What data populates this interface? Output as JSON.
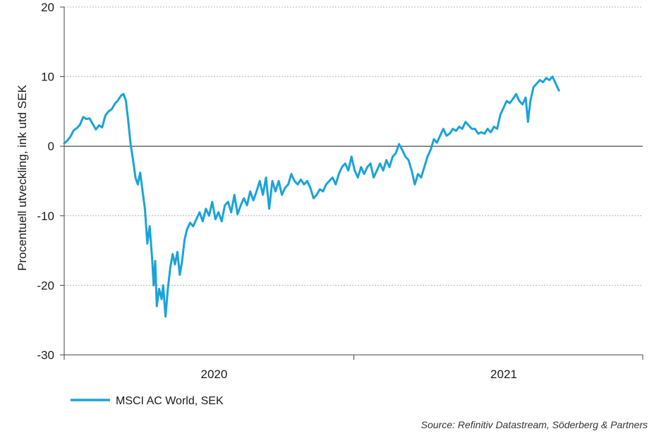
{
  "chart_data": {
    "type": "line",
    "title": "",
    "ylabel": "Procentuell utveckling, ink utd SEK",
    "xlabel": "",
    "ylim": [
      -30,
      20
    ],
    "y_ticks": [
      20,
      10,
      0,
      -10,
      -20,
      -30
    ],
    "x_range": [
      "2019-07-01",
      "2021-07-01"
    ],
    "x_ticks": [
      {
        "label": "2020",
        "date": "2020-01-01"
      },
      {
        "label": "2021",
        "date": "2021-01-01"
      }
    ],
    "grid": "horizontal-dotted",
    "zero_line": true,
    "legend_placement": "bottom-left",
    "source": "Source: Refinitiv Datastream, Söderberg & Partners",
    "series": [
      {
        "name": "MSCI AC World, SEK",
        "color": "#1aa3d9",
        "points": [
          [
            "2019-07-01",
            0.4
          ],
          [
            "2019-07-05",
            0.8
          ],
          [
            "2019-07-09",
            1.4
          ],
          [
            "2019-07-13",
            2.3
          ],
          [
            "2019-07-17",
            2.6
          ],
          [
            "2019-07-21",
            3.1
          ],
          [
            "2019-07-25",
            4.2
          ],
          [
            "2019-07-29",
            3.9
          ],
          [
            "2019-08-02",
            4.0
          ],
          [
            "2019-08-06",
            3.2
          ],
          [
            "2019-08-10",
            2.4
          ],
          [
            "2019-08-14",
            3.0
          ],
          [
            "2019-08-18",
            2.7
          ],
          [
            "2019-08-22",
            4.4
          ],
          [
            "2019-08-26",
            5.0
          ],
          [
            "2019-08-30",
            5.3
          ],
          [
            "2019-09-03",
            6.1
          ],
          [
            "2019-09-07",
            6.6
          ],
          [
            "2019-09-11",
            7.3
          ],
          [
            "2019-09-14",
            7.5
          ],
          [
            "2019-09-17",
            6.5
          ],
          [
            "2019-09-20",
            3.5
          ],
          [
            "2019-09-23",
            0.2
          ],
          [
            "2019-09-26",
            -2.0
          ],
          [
            "2019-09-29",
            -4.5
          ],
          [
            "2019-10-02",
            -5.5
          ],
          [
            "2019-10-05",
            -3.8
          ],
          [
            "2019-10-08",
            -6.5
          ],
          [
            "2019-10-11",
            -9.0
          ],
          [
            "2019-10-14",
            -14.0
          ],
          [
            "2019-10-17",
            -11.5
          ],
          [
            "2019-10-20",
            -16.0
          ],
          [
            "2019-10-22",
            -20.0
          ],
          [
            "2019-10-24",
            -16.5
          ],
          [
            "2019-10-26",
            -23.0
          ],
          [
            "2019-10-29",
            -20.5
          ],
          [
            "2019-11-01",
            -22.0
          ],
          [
            "2019-11-03",
            -20.0
          ],
          [
            "2019-11-06",
            -24.5
          ],
          [
            "2019-11-09",
            -20.5
          ],
          [
            "2019-11-12",
            -17.5
          ],
          [
            "2019-11-15",
            -15.5
          ],
          [
            "2019-11-18",
            -17.0
          ],
          [
            "2019-11-21",
            -15.2
          ],
          [
            "2019-11-24",
            -18.5
          ],
          [
            "2019-11-27",
            -16.5
          ],
          [
            "2019-11-30",
            -13.5
          ],
          [
            "2019-12-03",
            -12.0
          ],
          [
            "2019-12-07",
            -11.0
          ],
          [
            "2019-12-11",
            -11.5
          ],
          [
            "2019-12-15",
            -10.5
          ],
          [
            "2019-12-19",
            -9.5
          ],
          [
            "2019-12-23",
            -10.8
          ],
          [
            "2019-12-27",
            -9.0
          ],
          [
            "2019-12-31",
            -10.0
          ],
          [
            "2020-01-04",
            -8.0
          ],
          [
            "2020-01-08",
            -10.5
          ],
          [
            "2020-01-12",
            -9.5
          ],
          [
            "2020-01-16",
            -10.8
          ],
          [
            "2020-01-20",
            -8.5
          ],
          [
            "2020-01-24",
            -8.0
          ],
          [
            "2020-01-28",
            -9.5
          ],
          [
            "2020-02-01",
            -7.0
          ],
          [
            "2020-02-05",
            -9.8
          ],
          [
            "2020-02-09",
            -8.5
          ],
          [
            "2020-02-13",
            -7.5
          ],
          [
            "2020-02-17",
            -8.5
          ],
          [
            "2020-02-21",
            -6.5
          ],
          [
            "2020-02-25",
            -7.8
          ],
          [
            "2020-02-29",
            -6.5
          ],
          [
            "2020-03-04",
            -5.0
          ],
          [
            "2020-03-08",
            -7.0
          ],
          [
            "2020-03-12",
            -4.5
          ],
          [
            "2020-03-16",
            -9.0
          ],
          [
            "2020-03-20",
            -5.0
          ],
          [
            "2020-03-24",
            -6.5
          ],
          [
            "2020-03-28",
            -5.0
          ],
          [
            "2020-04-01",
            -7.0
          ],
          [
            "2020-04-05",
            -6.0
          ],
          [
            "2020-04-09",
            -5.5
          ],
          [
            "2020-04-13",
            -4.0
          ],
          [
            "2020-04-17",
            -5.0
          ],
          [
            "2020-04-21",
            -5.5
          ],
          [
            "2020-04-25",
            -4.8
          ],
          [
            "2020-04-29",
            -5.5
          ],
          [
            "2020-05-03",
            -5.0
          ],
          [
            "2020-05-07",
            -6.0
          ],
          [
            "2020-05-11",
            -7.5
          ],
          [
            "2020-05-15",
            -7.0
          ],
          [
            "2020-05-19",
            -6.2
          ],
          [
            "2020-05-23",
            -6.5
          ],
          [
            "2020-05-27",
            -5.5
          ],
          [
            "2020-05-31",
            -5.0
          ],
          [
            "2020-06-04",
            -4.5
          ],
          [
            "2020-06-08",
            -5.5
          ],
          [
            "2020-06-12",
            -4.0
          ],
          [
            "2020-06-16",
            -3.0
          ],
          [
            "2020-06-20",
            -2.5
          ],
          [
            "2020-06-24",
            -3.5
          ],
          [
            "2020-06-28",
            -1.5
          ],
          [
            "2020-07-02",
            -3.5
          ],
          [
            "2020-07-06",
            -4.5
          ],
          [
            "2020-07-10",
            -3.0
          ],
          [
            "2020-07-14",
            -4.0
          ],
          [
            "2020-07-18",
            -3.0
          ],
          [
            "2020-07-22",
            -2.5
          ],
          [
            "2020-07-26",
            -4.5
          ],
          [
            "2020-07-30",
            -3.5
          ],
          [
            "2020-08-03",
            -2.5
          ],
          [
            "2020-08-07",
            -3.5
          ],
          [
            "2020-08-11",
            -2.0
          ],
          [
            "2020-08-15",
            -3.0
          ],
          [
            "2020-08-19",
            -1.5
          ],
          [
            "2020-08-23",
            -1.0
          ],
          [
            "2020-08-27",
            0.3
          ],
          [
            "2020-08-31",
            -0.5
          ],
          [
            "2020-09-04",
            -1.5
          ],
          [
            "2020-09-08",
            -2.0
          ],
          [
            "2020-09-12",
            -3.5
          ],
          [
            "2020-09-16",
            -5.5
          ],
          [
            "2020-09-20",
            -4.0
          ],
          [
            "2020-09-24",
            -4.5
          ],
          [
            "2020-09-28",
            -3.0
          ],
          [
            "2020-10-02",
            -1.5
          ],
          [
            "2020-10-06",
            -0.5
          ],
          [
            "2020-10-10",
            1.0
          ],
          [
            "2020-10-14",
            0.5
          ],
          [
            "2020-10-18",
            1.5
          ],
          [
            "2020-10-22",
            2.5
          ],
          [
            "2020-10-26",
            1.5
          ],
          [
            "2020-10-30",
            1.8
          ],
          [
            "2020-11-03",
            2.5
          ],
          [
            "2020-11-07",
            2.2
          ],
          [
            "2020-11-11",
            2.8
          ],
          [
            "2020-11-15",
            2.5
          ],
          [
            "2020-11-19",
            3.5
          ],
          [
            "2020-11-23",
            3.0
          ],
          [
            "2020-11-27",
            2.5
          ],
          [
            "2020-12-01",
            2.5
          ],
          [
            "2020-12-05",
            1.8
          ],
          [
            "2020-12-09",
            2.0
          ],
          [
            "2020-12-13",
            1.8
          ],
          [
            "2020-12-17",
            2.5
          ],
          [
            "2020-12-21",
            2.0
          ],
          [
            "2020-12-25",
            2.8
          ],
          [
            "2020-12-29",
            2.5
          ],
          [
            "2021-01-02",
            4.5
          ],
          [
            "2021-01-06",
            5.5
          ],
          [
            "2021-01-10",
            6.5
          ],
          [
            "2021-01-14",
            6.2
          ],
          [
            "2021-01-18",
            6.8
          ],
          [
            "2021-01-22",
            7.5
          ],
          [
            "2021-01-26",
            6.5
          ],
          [
            "2021-01-30",
            6.0
          ],
          [
            "2021-02-03",
            7.0
          ],
          [
            "2021-02-06",
            3.5
          ],
          [
            "2021-02-09",
            6.5
          ],
          [
            "2021-02-13",
            8.5
          ],
          [
            "2021-02-17",
            9.0
          ],
          [
            "2021-02-21",
            9.5
          ],
          [
            "2021-02-25",
            9.2
          ],
          [
            "2021-03-01",
            9.8
          ],
          [
            "2021-03-05",
            9.5
          ],
          [
            "2021-03-09",
            10.0
          ],
          [
            "2021-03-13",
            9.0
          ],
          [
            "2021-03-17",
            8.0
          ]
        ]
      }
    ]
  }
}
